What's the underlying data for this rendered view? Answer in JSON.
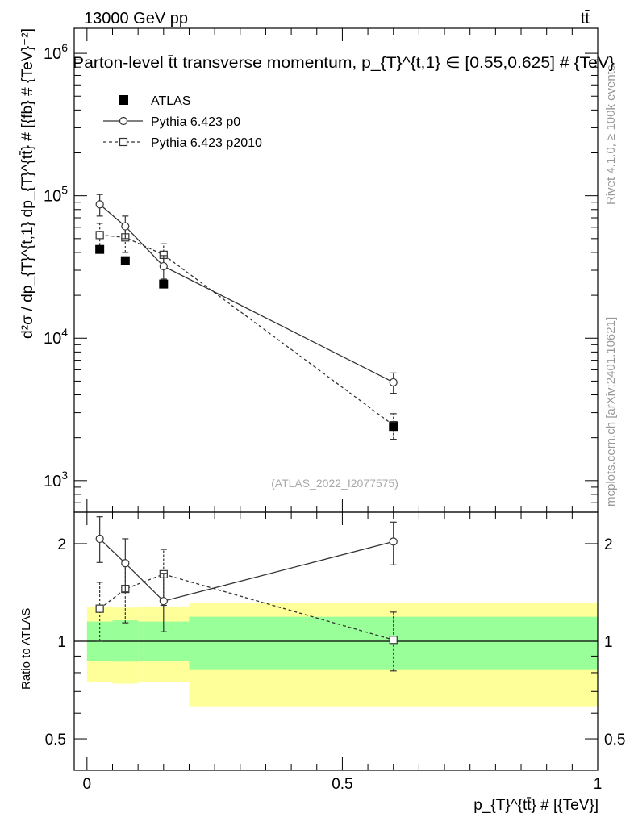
{
  "header": {
    "energy_label": "13000 GeV pp",
    "process_label": "tt̄"
  },
  "side_labels": {
    "rivet": "Rivet 4.1.0, ≥ 100k events",
    "mcplots": "mcplots.cern.ch [arXiv:2401.10621]"
  },
  "chart_data": [
    {
      "type": "scatter",
      "panel": "main",
      "title": "Parton-level t̄t transverse momentum, p_{T}^{t,1} ∈ [0.55,0.625] # {TeV}",
      "watermark": "(ATLAS_2022_I2077575)",
      "ylabel": "d²σ / dp_{T}^{t,1} dp_{T}^{tt̄} # [{fb} # {TeV}⁻²]",
      "yscale": "log",
      "ylim": [
        600,
        1500000
      ],
      "xlim": [
        -0.025,
        1.0
      ],
      "y_ticks": [
        {
          "value": 1000,
          "base": "10",
          "exp": "3"
        },
        {
          "value": 10000,
          "base": "10",
          "exp": "4"
        },
        {
          "value": 100000,
          "base": "10",
          "exp": "5"
        },
        {
          "value": 1000000,
          "base": "10",
          "exp": "6"
        }
      ],
      "legend": [
        {
          "label": "ATLAS",
          "style": "filled-square"
        },
        {
          "label": "Pythia 6.423 p0",
          "style": "solid-circle"
        },
        {
          "label": "Pythia 6.423 p2010",
          "style": "dashed-square"
        }
      ],
      "series": [
        {
          "name": "ATLAS",
          "x": [
            0.025,
            0.075,
            0.15,
            0.6
          ],
          "y": [
            42000,
            35000,
            24000,
            2400
          ],
          "yerr": [
            0,
            0,
            0,
            0
          ]
        },
        {
          "name": "Pythia 6.423 p0",
          "x": [
            0.025,
            0.075,
            0.15,
            0.6
          ],
          "y": [
            87000,
            61000,
            32000,
            4900
          ],
          "ylo": [
            72000,
            50000,
            26000,
            4100
          ],
          "yhi": [
            102000,
            72000,
            38000,
            5700
          ]
        },
        {
          "name": "Pythia 6.423 p2010",
          "x": [
            0.025,
            0.075,
            0.15,
            0.6
          ],
          "y": [
            53000,
            51000,
            38500,
            2450
          ],
          "ylo": [
            42000,
            40000,
            31000,
            1950
          ],
          "yhi": [
            64000,
            62000,
            46000,
            2950
          ]
        }
      ]
    },
    {
      "type": "scatter",
      "panel": "ratio",
      "ylabel": "Ratio to ATLAS",
      "xlabel": "p_{T}^{tt̄} # [{TeV}]",
      "yscale": "log",
      "ylim": [
        0.4,
        2.5
      ],
      "xlim": [
        -0.025,
        1.0
      ],
      "x_ticks": [
        {
          "value": 0,
          "label": "0"
        },
        {
          "value": 0.5,
          "label": "0.5"
        },
        {
          "value": 1,
          "label": "1"
        }
      ],
      "y_ticks": [
        {
          "value": 0.5,
          "label": "0.5"
        },
        {
          "value": 1,
          "label": "1"
        },
        {
          "value": 2,
          "label": "2"
        }
      ],
      "bands": [
        {
          "x0": 0.0,
          "x1": 0.05,
          "yellow": [
            0.75,
            1.28
          ],
          "green": [
            0.87,
            1.15
          ]
        },
        {
          "x0": 0.05,
          "x1": 0.1,
          "yellow": [
            0.74,
            1.27
          ],
          "green": [
            0.865,
            1.16
          ]
        },
        {
          "x0": 0.1,
          "x1": 0.2,
          "yellow": [
            0.75,
            1.28
          ],
          "green": [
            0.87,
            1.15
          ]
        },
        {
          "x0": 0.2,
          "x1": 1.0,
          "yellow": [
            0.63,
            1.31
          ],
          "green": [
            0.82,
            1.19
          ]
        }
      ],
      "series": [
        {
          "name": "Pythia 6.423 p0",
          "x": [
            0.025,
            0.075,
            0.15,
            0.6
          ],
          "y": [
            2.07,
            1.74,
            1.33,
            2.03
          ],
          "ylo": [
            1.75,
            1.42,
            1.07,
            1.72
          ],
          "yhi": [
            2.42,
            2.07,
            1.62,
            2.33
          ]
        },
        {
          "name": "Pythia 6.423 p2010",
          "x": [
            0.025,
            0.075,
            0.15,
            0.6
          ],
          "y": [
            1.26,
            1.45,
            1.61,
            1.01
          ],
          "ylo": [
            1.0,
            1.14,
            1.29,
            0.81
          ],
          "yhi": [
            1.52,
            1.75,
            1.92,
            1.23
          ]
        }
      ]
    }
  ]
}
